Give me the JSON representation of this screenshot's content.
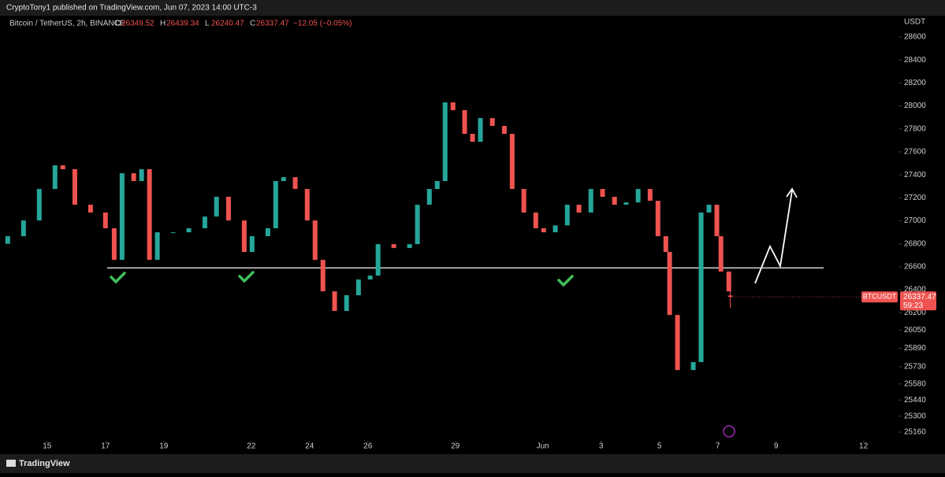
{
  "header": {
    "text": "CryptoTony1 published on TradingView.com, Jun 07, 2023 14:00 UTC-3"
  },
  "footer": {
    "brand": "TradingView"
  },
  "chart_data": {
    "type": "candlestick",
    "symbol": "Bitcoin / TetherUS, 2h, BINANCE",
    "ohlc_labels": {
      "open": "O",
      "high": "H",
      "low": "L",
      "close": "C"
    },
    "last": {
      "open": 26349.52,
      "high": 26439.34,
      "low": 26240.47,
      "close": 26337.47,
      "change": "−12.05 (−0.05%)",
      "ticker": "BTCUSDT",
      "countdown": "59:23"
    },
    "currency": "USDT",
    "up_color": "#26a69a",
    "down_color": "#ef5350",
    "x": [
      -1.35,
      -0.81,
      -0.27,
      0.27,
      0.54,
      0.95,
      1.49,
      2.0,
      2.3,
      2.57,
      2.97,
      3.24,
      3.51,
      3.78,
      4.32,
      4.86,
      5.41,
      5.81,
      6.22,
      6.76,
      7.03,
      7.57,
      7.84,
      8.11,
      8.51,
      8.92,
      9.19,
      9.46,
      9.86,
      10.27,
      10.68,
      11.08,
      11.35,
      11.89,
      12.43,
      12.7,
      13.11,
      13.38,
      13.65,
      13.92,
      14.32,
      14.59,
      14.86,
      15.27,
      15.68,
      15.95,
      16.35,
      16.76,
      17.03,
      17.43,
      17.84,
      18.24,
      18.65,
      19.05,
      19.46,
      19.86,
      20.27,
      20.68,
      20.95,
      21.22,
      21.35,
      21.62,
      22.16,
      22.43,
      22.7,
      22.97,
      23.11,
      23.38
    ],
    "open": [
      26800,
      26866,
      27003,
      27277,
      27483,
      27449,
      27140,
      27072,
      26935,
      26660,
      27414,
      27346,
      27449,
      26660,
      26900,
      26900,
      26935,
      27037,
      27209,
      27003,
      26729,
      26866,
      26935,
      27346,
      27380,
      27277,
      27003,
      26660,
      26386,
      26215,
      26352,
      26489,
      26523,
      26797,
      26763,
      26797,
      27140,
      27277,
      27346,
      28031,
      27963,
      27757,
      27688,
      27894,
      27826,
      27757,
      27277,
      27072,
      26935,
      26900,
      26960,
      27140,
      27072,
      27277,
      27209,
      27140,
      27160,
      27277,
      27174,
      26866,
      26729,
      26180,
      25701,
      25770,
      27072,
      27140,
      26866,
      26558
    ],
    "close": [
      26866,
      27003,
      27277,
      27483,
      27449,
      27140,
      27072,
      26935,
      26660,
      27414,
      27346,
      27449,
      26660,
      26900,
      26900,
      26935,
      27037,
      27209,
      27003,
      26729,
      26866,
      26935,
      27346,
      27380,
      27277,
      27003,
      26660,
      26386,
      26215,
      26352,
      26489,
      26523,
      26797,
      26763,
      26797,
      27140,
      27277,
      27346,
      28031,
      27963,
      27757,
      27688,
      27894,
      27826,
      27757,
      27277,
      27072,
      26935,
      26900,
      26960,
      27140,
      27072,
      27277,
      27209,
      27140,
      27160,
      27277,
      27174,
      26866,
      26729,
      26180,
      25701,
      25770,
      27072,
      27140,
      26866,
      26558,
      26386
    ],
    "last_x": 23.43,
    "support_level": 26590,
    "xlim": [
      -1.4,
      29.2
    ],
    "xticks": [
      {
        "value": 0,
        "label": "15"
      },
      {
        "value": 2,
        "label": "17"
      },
      {
        "value": 4,
        "label": "19"
      },
      {
        "value": 7,
        "label": "22"
      },
      {
        "value": 9,
        "label": "24"
      },
      {
        "value": 11,
        "label": "26"
      },
      {
        "value": 14,
        "label": "29"
      },
      {
        "value": 17,
        "label": "Jun"
      },
      {
        "value": 19,
        "label": "3"
      },
      {
        "value": 21,
        "label": "5"
      },
      {
        "value": 23,
        "label": "7"
      },
      {
        "value": 25,
        "label": "9"
      },
      {
        "value": 28,
        "label": "12"
      }
    ],
    "ylim": [
      25085,
      28785
    ],
    "yticks": [
      28600,
      28400,
      28200,
      28000,
      27800,
      27600,
      27400,
      27200,
      27000,
      26800,
      26600,
      26400,
      26200,
      26050,
      25890,
      25730,
      25580,
      25440,
      25300,
      25160
    ]
  }
}
